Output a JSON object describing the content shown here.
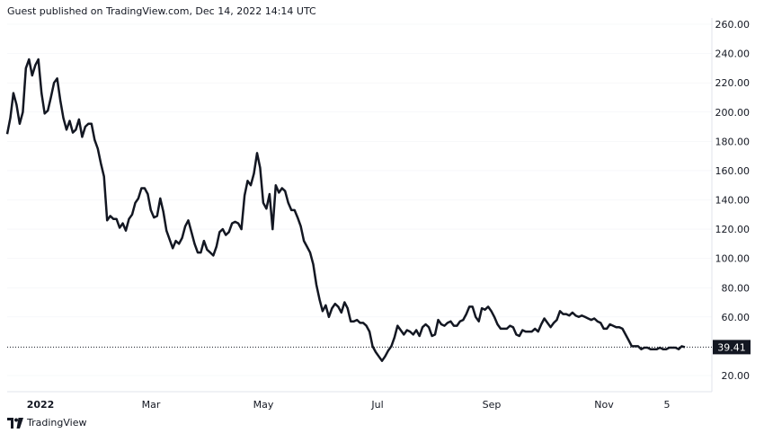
{
  "header": {
    "published": "Guest published on TradingView.com, Dec 14, 2022 14:14 UTC"
  },
  "footer": {
    "brand": "TradingView"
  },
  "colors": {
    "line": "#131722",
    "grid": "#e0e3eb",
    "label_bg": "#131722",
    "label_text": "#ffffff"
  },
  "chart_data": {
    "type": "line",
    "y_ticks": [
      "260.00",
      "240.00",
      "220.00",
      "200.00",
      "180.00",
      "160.00",
      "140.00",
      "120.00",
      "100.00",
      "80.00",
      "60.00",
      "20.00"
    ],
    "x_ticks": [
      "2022",
      "Mar",
      "May",
      "Jul",
      "Sep",
      "Nov",
      "5"
    ],
    "ylim": [
      0,
      265
    ],
    "last_value": "39.41",
    "series": [
      {
        "values": [
          185,
          196,
          213,
          205,
          192,
          200,
          230,
          236,
          225,
          232,
          236,
          213,
          199,
          201,
          210,
          220,
          223,
          208,
          196,
          188,
          194,
          186,
          188,
          195,
          183,
          190,
          192,
          192,
          181,
          175,
          165,
          156,
          126,
          129,
          127,
          127,
          121,
          124,
          119,
          127,
          130,
          138,
          141,
          148,
          148,
          144,
          133,
          128,
          129,
          141,
          132,
          119,
          113,
          107,
          112,
          110,
          114,
          122,
          126,
          118,
          110,
          104,
          104,
          112,
          106,
          104,
          102,
          108,
          118,
          120,
          116,
          118,
          124,
          125,
          124,
          120,
          143,
          153,
          150,
          158,
          172,
          162,
          138,
          134,
          144,
          120,
          150,
          145,
          148,
          146,
          138,
          133,
          133,
          128,
          122,
          112,
          108,
          104,
          96,
          82,
          72,
          64,
          68,
          60,
          66,
          69,
          67,
          63,
          70,
          66,
          57,
          57,
          58,
          56,
          56,
          54,
          50,
          40,
          36,
          33,
          30,
          33,
          37,
          40,
          46,
          54,
          51,
          48,
          51,
          50,
          48,
          51,
          47,
          53,
          55,
          53,
          47,
          48,
          58,
          55,
          54,
          56,
          57,
          54,
          54,
          57,
          58,
          62,
          67,
          67,
          60,
          57,
          66,
          65,
          67,
          64,
          60,
          55,
          52,
          52,
          52,
          54,
          53,
          48,
          47,
          51,
          50,
          50,
          50,
          52,
          50,
          55,
          59,
          56,
          53,
          56,
          58,
          64,
          62,
          62,
          61,
          63,
          61,
          60,
          61,
          60,
          59,
          58,
          59,
          57,
          56,
          52,
          52,
          55,
          54,
          53,
          53,
          52,
          48,
          44,
          40,
          40,
          40,
          38,
          39,
          39,
          38,
          38,
          38,
          39,
          38,
          38,
          39,
          39,
          39,
          38,
          40,
          39.41
        ]
      }
    ]
  }
}
